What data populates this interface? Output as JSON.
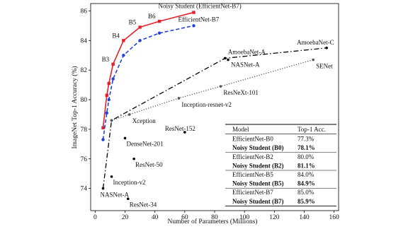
{
  "chart_data": {
    "type": "line",
    "xlabel": "Number of Parameters (Millions)",
    "ylabel": "ImageNet Top-1 Accuracy (%)",
    "xlim": [
      -3,
      163
    ],
    "xticks": [
      0,
      20,
      40,
      60,
      80,
      100,
      120,
      140,
      160
    ],
    "ylim": [
      72.5,
      86.5
    ],
    "yticks": [
      74,
      76,
      78,
      80,
      82,
      84,
      86
    ],
    "series": [
      {
        "color": "#e8202a",
        "dash": "solid",
        "marker": "square",
        "x": [
          5.3,
          7.8,
          9.2,
          12,
          19,
          30,
          43,
          66
        ],
        "values": [
          78.1,
          80.3,
          81.1,
          82.4,
          84.0,
          84.9,
          85.3,
          85.9
        ],
        "point_labels": [
          null,
          null,
          null,
          "B3",
          "B4",
          "B5",
          "B6",
          "Noisy Student (EfficientNet-B7)"
        ]
      },
      {
        "color": "#2040e0",
        "dash": "dashed",
        "marker": "circle",
        "x": [
          5.3,
          7.8,
          9.2,
          12,
          19,
          30,
          43,
          66
        ],
        "values": [
          77.3,
          79.1,
          80.0,
          81.4,
          83.0,
          84.0,
          84.5,
          85.0
        ],
        "point_labels": [
          null,
          null,
          null,
          null,
          null,
          null,
          null,
          "EfficientNet-B7"
        ]
      },
      {
        "color": "#000000",
        "dash": "dashdot",
        "marker": "circle",
        "x": [
          5.3,
          11,
          87,
          155
        ],
        "values": [
          74.0,
          78.6,
          82.8,
          83.5
        ],
        "point_labels": [
          "NASNet-A",
          null,
          "AmoebaNet-A",
          "AmoebaNet-C"
        ]
      },
      {
        "color": "#555555",
        "dash": "dotted",
        "marker": "circle",
        "x": [
          11,
          23,
          56,
          84,
          146
        ],
        "values": [
          78.6,
          79.0,
          80.1,
          80.9,
          82.7
        ],
        "point_labels": [
          null,
          "Xception",
          "Inception-resnet-v2",
          "ResNeXt-101",
          "SENet"
        ]
      }
    ],
    "points": [
      {
        "label": "NASNet-A",
        "x": 89,
        "y": 82.7
      },
      {
        "label": "DenseNet-201",
        "x": 20,
        "y": 77.4
      },
      {
        "label": "ResNet-152",
        "x": 60,
        "y": 77.8
      },
      {
        "label": "ResNet-50",
        "x": 26,
        "y": 76.0
      },
      {
        "label": "Inception-v2",
        "x": 11,
        "y": 74.8
      },
      {
        "label": "ResNet-34",
        "x": 22,
        "y": 73.3
      }
    ],
    "table": {
      "header": [
        "Model",
        "Top-1 Acc."
      ],
      "rows": [
        [
          "EfficientNet-B0",
          "77.3%"
        ],
        [
          "Noisy Student (B0)",
          "78.1%"
        ],
        [
          "EfficientNet-B2",
          "80.0%"
        ],
        [
          "Noisy Student (B2)",
          "81.1%"
        ],
        [
          "EfficientNet-B5",
          "84.0%"
        ],
        [
          "Noisy Student (B5)",
          "84.9%"
        ],
        [
          "EfficientNet-B7",
          "85.0%"
        ],
        [
          "Noisy Student (B7)",
          "85.9%"
        ]
      ]
    }
  }
}
